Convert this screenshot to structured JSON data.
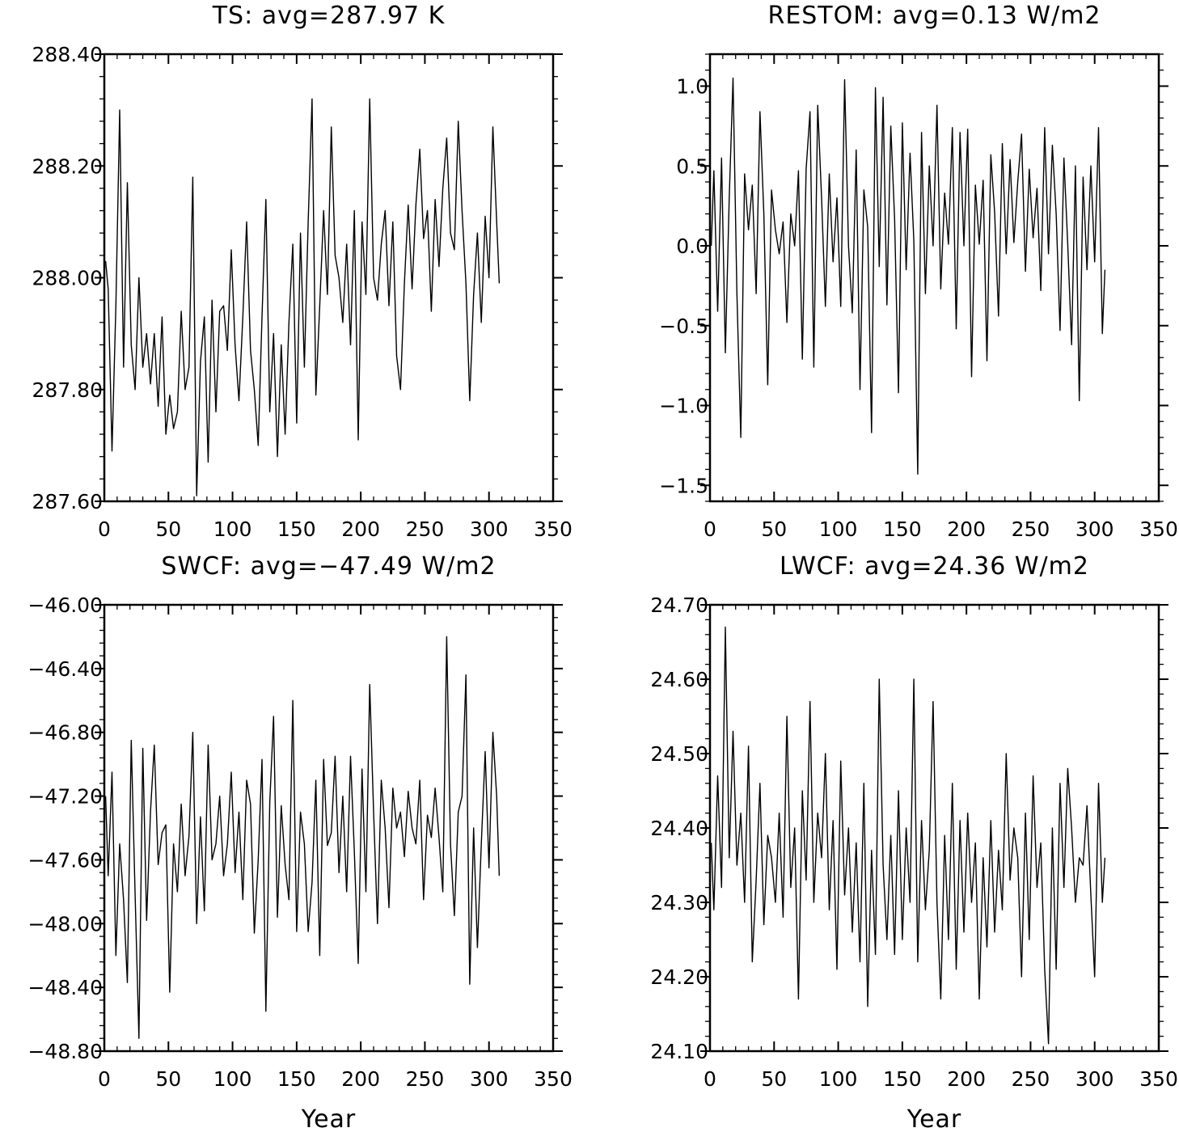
{
  "chart_data": [
    {
      "type": "line",
      "title": "TS: avg=287.97 K",
      "xlabel": "",
      "ylabel": "",
      "xlim": [
        0,
        350
      ],
      "ylim": [
        287.6,
        288.4
      ],
      "xticks": [
        0,
        50,
        100,
        150,
        200,
        250,
        300,
        350
      ],
      "xtick_labels": [
        "0",
        "50",
        "100",
        "150",
        "200",
        "250",
        "300",
        "350"
      ],
      "yticks": [
        287.6,
        287.8,
        288.0,
        288.2,
        288.4
      ],
      "ytick_labels": [
        "287.60",
        "287.80",
        "288.00",
        "288.20",
        "288.40"
      ],
      "grid": false,
      "series": [
        {
          "x": [
            1,
            3,
            6,
            9,
            12,
            15,
            18,
            21,
            24,
            27,
            30,
            33,
            36,
            39,
            42,
            45,
            48,
            51,
            54,
            57,
            60,
            63,
            66,
            69,
            72,
            75,
            78,
            81,
            84,
            87,
            90,
            93,
            96,
            99,
            102,
            105,
            108,
            111,
            114,
            117,
            120,
            123,
            126,
            129,
            132,
            135,
            138,
            141,
            144,
            147,
            150,
            153,
            156,
            159,
            162,
            165,
            168,
            171,
            174,
            177,
            180,
            183,
            186,
            189,
            192,
            195,
            198,
            201,
            204,
            207,
            210,
            213,
            216,
            219,
            222,
            225,
            228,
            231,
            234,
            237,
            240,
            243,
            246,
            249,
            252,
            255,
            258,
            261,
            264,
            267,
            270,
            273,
            276,
            279,
            282,
            285,
            288,
            291,
            294,
            297,
            300,
            303,
            306,
            308
          ],
          "y": [
            288.03,
            287.98,
            287.69,
            287.95,
            288.3,
            287.84,
            288.17,
            287.88,
            287.8,
            288.0,
            287.84,
            287.9,
            287.81,
            287.9,
            287.77,
            287.93,
            287.72,
            287.79,
            287.73,
            287.76,
            287.94,
            287.8,
            287.84,
            288.18,
            287.61,
            287.85,
            287.93,
            287.67,
            287.96,
            287.76,
            287.94,
            287.95,
            287.87,
            288.05,
            287.88,
            287.78,
            287.93,
            288.1,
            287.87,
            287.8,
            287.7,
            287.93,
            288.14,
            287.76,
            287.9,
            287.68,
            287.88,
            287.72,
            287.92,
            288.06,
            287.74,
            288.08,
            287.84,
            288.1,
            288.32,
            287.79,
            287.95,
            288.12,
            287.97,
            288.27,
            288.04,
            288.0,
            287.92,
            288.06,
            287.88,
            288.12,
            287.71,
            288.1,
            287.97,
            288.32,
            288.0,
            287.96,
            288.06,
            288.12,
            287.95,
            288.1,
            287.86,
            287.8,
            287.99,
            288.13,
            287.98,
            288.13,
            288.23,
            288.07,
            288.12,
            287.94,
            288.14,
            288.02,
            288.16,
            288.25,
            288.08,
            288.05,
            288.28,
            288.12,
            287.99,
            287.78,
            287.97,
            288.08,
            287.92,
            288.11,
            288.0,
            288.27,
            288.1,
            287.99
          ]
        }
      ]
    },
    {
      "type": "line",
      "title": "RESTOM: avg=0.13 W/m2",
      "xlabel": "",
      "ylabel": "",
      "xlim": [
        0,
        350
      ],
      "ylim": [
        -1.6,
        1.2
      ],
      "xticks": [
        0,
        50,
        100,
        150,
        200,
        250,
        300,
        350
      ],
      "xtick_labels": [
        "0",
        "50",
        "100",
        "150",
        "200",
        "250",
        "300",
        "350"
      ],
      "yticks": [
        -1.5,
        -1.0,
        -0.5,
        0.0,
        0.5,
        1.0
      ],
      "ytick_labels": [
        "−1.5",
        "−1.0",
        "−0.5",
        "0.0",
        "0.5",
        "1.0"
      ],
      "grid": false,
      "series": [
        {
          "x": [
            1,
            3,
            6,
            9,
            12,
            15,
            18,
            21,
            24,
            27,
            30,
            33,
            36,
            39,
            42,
            45,
            48,
            51,
            54,
            57,
            60,
            63,
            66,
            69,
            72,
            75,
            78,
            81,
            84,
            87,
            90,
            93,
            96,
            99,
            102,
            105,
            108,
            111,
            114,
            117,
            120,
            123,
            126,
            129,
            132,
            135,
            138,
            141,
            144,
            147,
            150,
            153,
            156,
            159,
            162,
            165,
            168,
            171,
            174,
            177,
            180,
            183,
            186,
            189,
            192,
            195,
            198,
            201,
            204,
            207,
            210,
            213,
            216,
            219,
            222,
            225,
            228,
            231,
            234,
            237,
            240,
            243,
            246,
            249,
            252,
            255,
            258,
            261,
            264,
            267,
            270,
            273,
            276,
            279,
            282,
            285,
            288,
            291,
            294,
            297,
            300,
            303,
            306,
            308
          ],
          "y": [
            0.0,
            0.47,
            -0.41,
            0.55,
            -0.67,
            0.3,
            1.05,
            -0.3,
            -1.2,
            0.45,
            0.1,
            0.38,
            -0.3,
            0.84,
            0.2,
            -0.87,
            0.35,
            0.1,
            -0.05,
            0.15,
            -0.48,
            0.2,
            0.0,
            0.47,
            -0.71,
            0.48,
            0.84,
            -0.76,
            0.88,
            0.3,
            -0.38,
            0.45,
            -0.1,
            0.3,
            -0.38,
            1.04,
            0.0,
            -0.42,
            0.6,
            -0.9,
            0.35,
            0.12,
            -1.17,
            0.99,
            -0.13,
            0.93,
            -0.37,
            0.75,
            0.17,
            -0.92,
            0.77,
            -0.15,
            0.58,
            0.03,
            -1.43,
            0.71,
            -0.3,
            0.5,
            0.0,
            0.88,
            -0.27,
            0.33,
            0.01,
            0.74,
            -0.52,
            0.71,
            0.0,
            0.73,
            -0.82,
            0.38,
            0.01,
            0.41,
            -0.72,
            0.57,
            0.21,
            -0.44,
            0.64,
            -0.05,
            0.54,
            0.02,
            0.4,
            0.7,
            -0.16,
            0.48,
            0.05,
            0.36,
            -0.28,
            0.74,
            -0.05,
            0.63,
            0.2,
            -0.53,
            0.55,
            0.01,
            -0.62,
            0.5,
            -0.97,
            0.43,
            -0.15,
            0.5,
            -0.1,
            0.74,
            -0.55,
            -0.15
          ]
        }
      ]
    },
    {
      "type": "line",
      "title": "SWCF: avg=−47.49 W/m2",
      "xlabel": "Year",
      "ylabel": "",
      "xlim": [
        0,
        350
      ],
      "ylim": [
        -48.8,
        -46.0
      ],
      "xticks": [
        0,
        50,
        100,
        150,
        200,
        250,
        300,
        350
      ],
      "xtick_labels": [
        "0",
        "50",
        "100",
        "150",
        "200",
        "250",
        "300",
        "350"
      ],
      "yticks": [
        -48.8,
        -48.4,
        -48.0,
        -47.6,
        -47.2,
        -46.8,
        -46.4,
        -46.0
      ],
      "ytick_labels": [
        "−48.80",
        "−48.40",
        "−48.00",
        "−47.60",
        "−47.20",
        "−46.80",
        "−46.40",
        "−46.00"
      ],
      "grid": false,
      "series": [
        {
          "x": [
            1,
            3,
            6,
            9,
            12,
            15,
            18,
            21,
            24,
            27,
            30,
            33,
            36,
            39,
            42,
            45,
            48,
            51,
            54,
            57,
            60,
            63,
            66,
            69,
            72,
            75,
            78,
            81,
            84,
            87,
            90,
            93,
            96,
            99,
            102,
            105,
            108,
            111,
            114,
            117,
            120,
            123,
            126,
            129,
            132,
            135,
            138,
            141,
            144,
            147,
            150,
            153,
            156,
            159,
            162,
            165,
            168,
            171,
            174,
            177,
            180,
            183,
            186,
            189,
            192,
            195,
            198,
            201,
            204,
            207,
            210,
            213,
            216,
            219,
            222,
            225,
            228,
            231,
            234,
            237,
            240,
            243,
            246,
            249,
            252,
            255,
            258,
            261,
            264,
            267,
            270,
            273,
            276,
            279,
            282,
            285,
            288,
            291,
            294,
            297,
            300,
            303,
            306,
            308
          ],
          "y": [
            -47.2,
            -47.7,
            -47.05,
            -48.2,
            -47.5,
            -47.85,
            -48.37,
            -46.85,
            -47.82,
            -48.72,
            -46.9,
            -47.98,
            -47.3,
            -46.88,
            -47.63,
            -47.43,
            -47.38,
            -48.43,
            -47.5,
            -47.8,
            -47.25,
            -47.7,
            -47.45,
            -46.8,
            -48.0,
            -47.33,
            -47.92,
            -46.88,
            -47.6,
            -47.5,
            -47.2,
            -47.7,
            -47.5,
            -47.05,
            -47.68,
            -47.3,
            -47.85,
            -47.1,
            -47.25,
            -48.06,
            -47.6,
            -46.97,
            -48.55,
            -47.24,
            -46.7,
            -47.96,
            -47.26,
            -47.63,
            -47.85,
            -46.6,
            -48.05,
            -47.3,
            -47.5,
            -48.05,
            -47.74,
            -47.1,
            -48.2,
            -46.97,
            -47.51,
            -47.43,
            -46.95,
            -47.68,
            -47.2,
            -47.8,
            -46.95,
            -47.55,
            -48.25,
            -47.03,
            -47.8,
            -46.5,
            -47.3,
            -48.0,
            -47.1,
            -47.4,
            -47.9,
            -47.15,
            -47.4,
            -47.3,
            -47.58,
            -47.17,
            -47.4,
            -47.5,
            -47.1,
            -47.85,
            -47.32,
            -47.46,
            -47.15,
            -47.46,
            -47.8,
            -46.2,
            -47.5,
            -47.95,
            -47.3,
            -47.2,
            -46.44,
            -48.38,
            -47.4,
            -48.15,
            -47.5,
            -46.92,
            -47.65,
            -46.8,
            -47.2,
            -47.7
          ]
        }
      ]
    },
    {
      "type": "line",
      "title": "LWCF: avg=24.36 W/m2",
      "xlabel": "Year",
      "ylabel": "",
      "xlim": [
        0,
        350
      ],
      "ylim": [
        24.1,
        24.7
      ],
      "xticks": [
        0,
        50,
        100,
        150,
        200,
        250,
        300,
        350
      ],
      "xtick_labels": [
        "0",
        "50",
        "100",
        "150",
        "200",
        "250",
        "300",
        "350"
      ],
      "yticks": [
        24.1,
        24.2,
        24.3,
        24.4,
        24.5,
        24.6,
        24.7
      ],
      "ytick_labels": [
        "24.10",
        "24.20",
        "24.30",
        "24.40",
        "24.50",
        "24.60",
        "24.70"
      ],
      "grid": false,
      "series": [
        {
          "x": [
            1,
            3,
            6,
            9,
            12,
            15,
            18,
            21,
            24,
            27,
            30,
            33,
            36,
            39,
            42,
            45,
            48,
            51,
            54,
            57,
            60,
            63,
            66,
            69,
            72,
            75,
            78,
            81,
            84,
            87,
            90,
            93,
            96,
            99,
            102,
            105,
            108,
            111,
            114,
            117,
            120,
            123,
            126,
            129,
            132,
            135,
            138,
            141,
            144,
            147,
            150,
            153,
            156,
            159,
            162,
            165,
            168,
            171,
            174,
            177,
            180,
            183,
            186,
            189,
            192,
            195,
            198,
            201,
            204,
            207,
            210,
            213,
            216,
            219,
            222,
            225,
            228,
            231,
            234,
            237,
            240,
            243,
            246,
            249,
            252,
            255,
            258,
            261,
            264,
            267,
            270,
            273,
            276,
            279,
            282,
            285,
            288,
            291,
            294,
            297,
            300,
            303,
            306,
            308
          ],
          "y": [
            24.38,
            24.29,
            24.47,
            24.32,
            24.67,
            24.36,
            24.53,
            24.35,
            24.42,
            24.3,
            24.51,
            24.22,
            24.33,
            24.46,
            24.27,
            24.39,
            24.36,
            24.3,
            24.42,
            24.28,
            24.55,
            24.32,
            24.4,
            24.17,
            24.45,
            24.33,
            24.57,
            24.3,
            24.42,
            24.36,
            24.5,
            24.29,
            24.41,
            24.21,
            24.49,
            24.31,
            24.4,
            24.26,
            24.38,
            24.22,
            24.46,
            24.16,
            24.37,
            24.23,
            24.6,
            24.35,
            24.25,
            24.39,
            24.23,
            24.45,
            24.25,
            24.4,
            24.3,
            24.6,
            24.22,
            24.41,
            24.29,
            24.37,
            24.57,
            24.3,
            24.17,
            24.39,
            24.25,
            24.46,
            24.21,
            24.41,
            24.26,
            24.42,
            24.3,
            24.38,
            24.17,
            24.36,
            24.24,
            24.41,
            24.26,
            24.37,
            24.29,
            24.5,
            24.33,
            24.4,
            24.36,
            24.2,
            24.42,
            24.25,
            24.47,
            24.32,
            24.38,
            24.21,
            24.11,
            24.4,
            24.21,
            24.46,
            24.32,
            24.48,
            24.4,
            24.3,
            24.36,
            24.35,
            24.43,
            24.31,
            24.2,
            24.46,
            24.3,
            24.36
          ]
        }
      ]
    }
  ]
}
